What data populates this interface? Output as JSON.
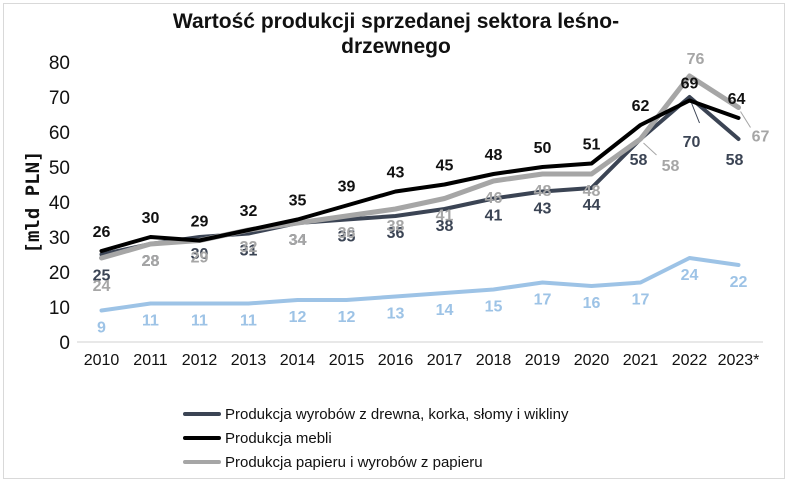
{
  "chart_data": {
    "type": "line",
    "title_lines": [
      "Wartość produkcji sprzedanej sektora leśno-",
      "drzewnego"
    ],
    "ylabel": "[mld PLN]",
    "xlabel": "",
    "ylim": [
      0,
      80
    ],
    "yticks": [
      0,
      10,
      20,
      30,
      40,
      50,
      60,
      70,
      80
    ],
    "grid": false,
    "legend_position": "bottom",
    "categories": [
      "2010",
      "2011",
      "2012",
      "2013",
      "2014",
      "2015",
      "2016",
      "2017",
      "2018",
      "2019",
      "2020",
      "2021",
      "2022",
      "2023*"
    ],
    "series": [
      {
        "name": "Produkcja wyrobów z drewna, korka, słomy i wikliny",
        "color": "#3b4454",
        "values": [
          25,
          28,
          30,
          31,
          34,
          35,
          36,
          38,
          41,
          43,
          44,
          58,
          70,
          58
        ],
        "in_legend": true
      },
      {
        "name": "Produkcja mebli",
        "color": "#000000",
        "values": [
          26,
          30,
          29,
          32,
          35,
          39,
          43,
          45,
          48,
          50,
          51,
          62,
          69,
          64
        ],
        "in_legend": true
      },
      {
        "name": "Produkcja papieru i wyrobów z papieru",
        "color": "#a6a6a6",
        "values": [
          24,
          28,
          29,
          32,
          34,
          36,
          38,
          41,
          46,
          48,
          48,
          58,
          76,
          67
        ],
        "in_legend": true
      },
      {
        "name": "",
        "color": "#9dc3e6",
        "values": [
          9,
          11,
          11,
          11,
          12,
          12,
          13,
          14,
          15,
          17,
          16,
          17,
          24,
          22
        ],
        "in_legend": false
      }
    ]
  }
}
